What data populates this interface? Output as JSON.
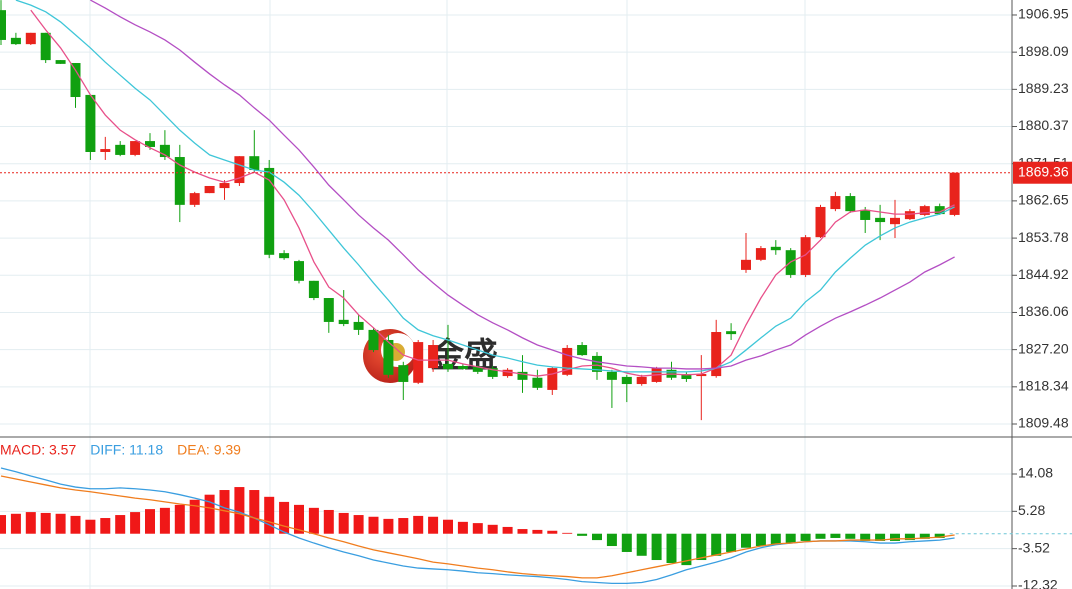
{
  "chart_data": [
    {
      "type": "candlestick",
      "watermark": "金盛",
      "up_color": "#e8231c",
      "down_color": "#10a010",
      "open": [
        1908.1,
        1901.5,
        1900.0,
        1902.7,
        1896.2,
        1895.5,
        1887.9,
        1874.3,
        1876.0,
        1873.6,
        1876.9,
        1876.0,
        1873.1,
        1861.7,
        1864.5,
        1865.7,
        1866.9,
        1873.3,
        1870.5,
        1850.2,
        1848.3,
        1843.6,
        1839.5,
        1834.3,
        1833.8,
        1831.9,
        1829.5,
        1823.5,
        1819.3,
        1822.8,
        1823.8,
        1823.3,
        1823.1,
        1822.8,
        1820.9,
        1821.9,
        1820.5,
        1817.6,
        1821.2,
        1828.3,
        1825.7,
        1821.9,
        1820.7,
        1819.0,
        1819.5,
        1822.4,
        1821.4,
        1820.9,
        1820.9,
        1831.6,
        1846.2,
        1848.6,
        1851.7,
        1850.9,
        1845.0,
        1854.0,
        1860.7,
        1863.8,
        1860.5,
        1858.6,
        1857.1,
        1858.3,
        1859.3,
        1861.4,
        1859.3
      ],
      "high": [
        1910.5,
        1902.7,
        1902.7,
        1902.7,
        1896.2,
        1895.5,
        1887.9,
        1877.9,
        1876.9,
        1876.9,
        1878.8,
        1879.5,
        1876.0,
        1864.8,
        1866.2,
        1867.6,
        1873.3,
        1879.5,
        1872.4,
        1850.9,
        1848.6,
        1843.6,
        1839.5,
        1841.4,
        1835.5,
        1832.5,
        1830.7,
        1824.3,
        1829.5,
        1829.5,
        1833.1,
        1823.8,
        1823.5,
        1823.3,
        1822.8,
        1825.9,
        1822.4,
        1823.1,
        1828.3,
        1829.0,
        1826.6,
        1822.4,
        1821.2,
        1821.2,
        1823.1,
        1824.3,
        1821.9,
        1825.9,
        1834.3,
        1833.5,
        1855.0,
        1851.9,
        1853.3,
        1851.4,
        1854.5,
        1861.7,
        1864.8,
        1864.5,
        1861.2,
        1861.7,
        1862.9,
        1860.7,
        1861.7,
        1862.0,
        1869.4
      ],
      "low": [
        1899.8,
        1899.8,
        1899.8,
        1895.5,
        1895.3,
        1884.8,
        1872.4,
        1872.4,
        1873.3,
        1873.3,
        1874.8,
        1872.4,
        1857.6,
        1861.2,
        1864.5,
        1862.9,
        1866.2,
        1869.5,
        1849.0,
        1848.6,
        1843.0,
        1839.0,
        1831.2,
        1832.8,
        1830.7,
        1826.6,
        1820.5,
        1815.2,
        1819.0,
        1821.9,
        1821.9,
        1822.4,
        1821.4,
        1820.2,
        1820.5,
        1816.9,
        1817.6,
        1816.4,
        1820.9,
        1825.7,
        1820.0,
        1813.3,
        1814.7,
        1818.6,
        1819.3,
        1820.0,
        1819.5,
        1810.4,
        1820.5,
        1829.5,
        1845.5,
        1848.3,
        1849.8,
        1844.3,
        1844.5,
        1853.8,
        1860.2,
        1859.8,
        1855.0,
        1853.3,
        1853.8,
        1858.1,
        1859.0,
        1859.3,
        1859.0
      ],
      "close": [
        1901.0,
        1900.0,
        1902.7,
        1896.2,
        1895.3,
        1887.4,
        1874.3,
        1875.0,
        1873.6,
        1876.9,
        1875.5,
        1873.1,
        1861.7,
        1864.5,
        1866.2,
        1866.9,
        1873.3,
        1870.0,
        1849.8,
        1849.0,
        1843.6,
        1839.5,
        1833.8,
        1833.3,
        1831.9,
        1827.1,
        1821.2,
        1819.5,
        1829.0,
        1828.3,
        1822.6,
        1822.6,
        1821.9,
        1820.7,
        1822.4,
        1820.0,
        1818.1,
        1822.8,
        1827.6,
        1825.9,
        1821.9,
        1820.0,
        1819.0,
        1820.7,
        1822.8,
        1820.5,
        1820.2,
        1821.4,
        1831.4,
        1830.9,
        1848.6,
        1851.4,
        1850.9,
        1845.0,
        1854.0,
        1861.2,
        1863.8,
        1860.2,
        1858.1,
        1857.6,
        1858.6,
        1860.2,
        1861.4,
        1859.5,
        1869.36
      ],
      "series": [
        {
          "color": "#e8508a",
          "values": [
            null,
            null,
            1908.1,
            1903.4,
            1899.1,
            1893.8,
            1887.9,
            1883.1,
            1879.5,
            1877.2,
            1875.3,
            1873.6,
            1871.2,
            1869.5,
            1868.1,
            1867.1,
            1868.1,
            1869.5,
            1867.6,
            1862.9,
            1856.2,
            1848.1,
            1842.1,
            1839.5,
            1835.5,
            1832.4,
            1829.0,
            1825.9,
            1824.7,
            1824.7,
            1824.7,
            1823.8,
            1823.1,
            1822.4,
            1821.9,
            1821.4,
            1820.9,
            1821.4,
            1822.4,
            1823.3,
            1823.5,
            1822.8,
            1821.6,
            1820.9,
            1821.2,
            1821.4,
            1821.2,
            1821.4,
            1822.8,
            1825.9,
            1833.1,
            1839.5,
            1845.0,
            1848.1,
            1849.8,
            1853.3,
            1857.6,
            1860.0,
            1860.5,
            1860.0,
            1859.5,
            1859.5,
            1859.8,
            1860.0,
            1861.7
          ]
        },
        {
          "color": "#3fc6d8",
          "values": [
            null,
            1910.5,
            1909.3,
            1907.7,
            1905.3,
            1902.2,
            1899.1,
            1895.7,
            1892.6,
            1889.5,
            1886.7,
            1883.1,
            1879.5,
            1876.4,
            1873.6,
            1872.4,
            1871.2,
            1870.0,
            1869.5,
            1867.1,
            1864.0,
            1860.0,
            1855.7,
            1851.4,
            1847.4,
            1843.1,
            1839.0,
            1834.7,
            1831.9,
            1830.5,
            1829.5,
            1828.3,
            1827.1,
            1825.9,
            1825.2,
            1824.3,
            1823.5,
            1823.1,
            1822.8,
            1822.6,
            1822.4,
            1822.1,
            1821.9,
            1821.9,
            1821.9,
            1821.9,
            1821.9,
            1822.1,
            1822.8,
            1824.3,
            1827.1,
            1830.0,
            1832.8,
            1834.7,
            1838.6,
            1841.4,
            1845.7,
            1849.0,
            1852.1,
            1854.3,
            1856.2,
            1857.6,
            1858.6,
            1859.5,
            1861.2
          ]
        },
        {
          "color": "#b44fc4",
          "values": [
            null,
            null,
            null,
            null,
            null,
            null,
            1910.5,
            1908.6,
            1906.5,
            1904.6,
            1902.9,
            1901.0,
            1898.6,
            1895.7,
            1892.9,
            1890.3,
            1887.9,
            1884.8,
            1881.9,
            1878.3,
            1874.8,
            1870.7,
            1866.4,
            1862.9,
            1859.3,
            1856.2,
            1853.3,
            1849.8,
            1846.2,
            1843.1,
            1840.2,
            1837.8,
            1835.5,
            1833.6,
            1831.9,
            1830.0,
            1828.3,
            1827.1,
            1825.9,
            1825.0,
            1824.3,
            1823.8,
            1823.3,
            1823.1,
            1822.8,
            1822.8,
            1822.6,
            1822.6,
            1822.8,
            1823.3,
            1824.7,
            1825.7,
            1827.1,
            1828.3,
            1830.7,
            1832.8,
            1834.7,
            1836.2,
            1837.8,
            1839.5,
            1841.4,
            1843.3,
            1845.7,
            1847.4,
            1849.3
          ]
        }
      ],
      "last_price": 1869.36,
      "ylim": [
        1806.38,
        1910.52
      ],
      "yticks": [
        1906.95,
        1898.09,
        1889.23,
        1880.37,
        1871.51,
        1862.65,
        1853.78,
        1844.92,
        1836.06,
        {
          "value": 1827.2,
          "label": "1827.20"
        },
        1818.34,
        1809.48
      ],
      "grid": true
    },
    {
      "type": "macd",
      "legend": [
        {
          "label": "MACD: 3.57",
          "color": "#e8231c"
        },
        {
          "label": "DIFF: 11.18",
          "color": "#3a9ee0"
        },
        {
          "label": "DEA: 9.39",
          "color": "#f07d1e"
        }
      ],
      "up_color": "#f01818",
      "down_color": "#10a010",
      "values": [
        4.4,
        4.7,
        5.1,
        4.9,
        4.7,
        4.2,
        3.3,
        3.7,
        4.4,
        5.1,
        5.8,
        6.1,
        6.8,
        8.0,
        9.2,
        10.3,
        11.0,
        10.3,
        8.7,
        7.5,
        6.8,
        6.1,
        5.6,
        4.9,
        4.4,
        4.0,
        3.5,
        3.7,
        4.2,
        4.0,
        3.3,
        2.8,
        2.5,
        2.1,
        1.6,
        1.1,
        0.9,
        0.7,
        0.2,
        -0.5,
        -1.5,
        -2.9,
        -4.3,
        -5.2,
        -6.2,
        -6.9,
        -7.4,
        -6.2,
        -5.2,
        -4.3,
        -3.3,
        -2.9,
        -2.6,
        -2.2,
        -1.7,
        -1.2,
        -1.0,
        -1.2,
        -1.7,
        -1.7,
        -1.7,
        -1.5,
        -1.2,
        -1.0,
        null
      ],
      "series": [
        {
          "color": "#3a9ee0",
          "values": [
            15.5,
            14.6,
            13.6,
            12.7,
            11.7,
            11.0,
            10.6,
            10.6,
            10.8,
            10.6,
            10.3,
            9.9,
            9.2,
            8.4,
            7.5,
            6.1,
            5.1,
            3.7,
            2.1,
            0.4,
            -1.0,
            -2.2,
            -3.3,
            -4.3,
            -5.2,
            -6.2,
            -6.9,
            -7.6,
            -8.1,
            -8.3,
            -8.5,
            -8.8,
            -9.2,
            -9.4,
            -9.7,
            -9.9,
            -10.1,
            -10.4,
            -10.8,
            -11.3,
            -11.5,
            -11.7,
            -11.7,
            -11.5,
            -10.8,
            -9.7,
            -8.5,
            -7.6,
            -6.7,
            -5.7,
            -4.3,
            -3.3,
            -2.6,
            -2.2,
            -1.9,
            -1.7,
            -1.7,
            -1.7,
            -1.9,
            -2.2,
            -2.2,
            -1.9,
            -1.7,
            -1.5,
            -1.0
          ]
        },
        {
          "color": "#f07d1e",
          "values": [
            13.6,
            12.9,
            12.2,
            11.5,
            10.8,
            10.3,
            9.9,
            9.4,
            8.9,
            8.4,
            8.0,
            7.5,
            7.0,
            6.6,
            6.1,
            5.4,
            4.7,
            3.7,
            2.8,
            1.8,
            0.9,
            0.0,
            -1.0,
            -1.9,
            -2.9,
            -3.8,
            -4.5,
            -5.2,
            -5.9,
            -6.7,
            -7.1,
            -7.6,
            -8.1,
            -8.5,
            -9.0,
            -9.4,
            -9.7,
            -9.9,
            -10.1,
            -10.4,
            -10.4,
            -9.9,
            -9.2,
            -8.5,
            -7.8,
            -7.1,
            -6.4,
            -5.7,
            -5.0,
            -4.3,
            -3.6,
            -2.9,
            -2.4,
            -2.2,
            -1.9,
            -1.7,
            -1.7,
            -1.5,
            -1.5,
            -1.5,
            -1.2,
            -1.2,
            -1.0,
            -0.8,
            -0.3
          ]
        }
      ],
      "ylim": [
        -13.03,
        22.8
      ],
      "yticks": [
        14.08,
        5.28,
        -3.52,
        -12.32
      ],
      "grid": true
    }
  ]
}
